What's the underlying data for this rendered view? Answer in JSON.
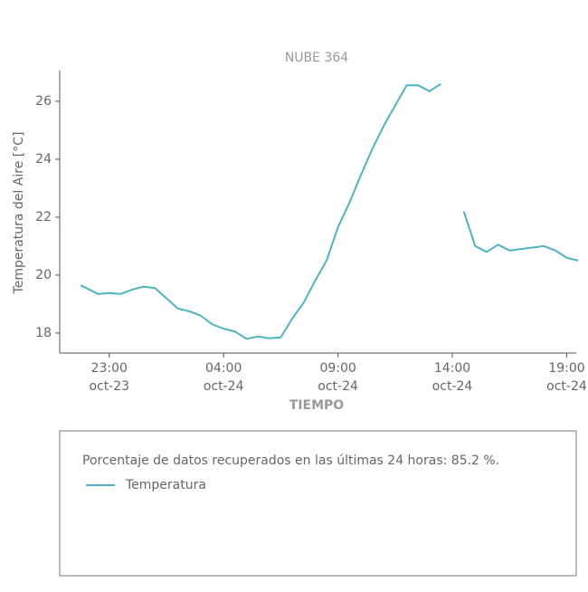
{
  "chart_data": {
    "type": "line",
    "title": "NUBE 364",
    "x_label": "TIEMPO",
    "y_label": "Temperatura del Aire [°C]",
    "x": [
      "oct-23 21:45",
      "oct-23 22:00",
      "oct-23 22:30",
      "oct-23 23:00",
      "oct-23 23:30",
      "oct-24 00:00",
      "oct-24 00:30",
      "oct-24 01:00",
      "oct-24 01:30",
      "oct-24 02:00",
      "oct-24 02:30",
      "oct-24 03:00",
      "oct-24 03:30",
      "oct-24 04:00",
      "oct-24 04:30",
      "oct-24 05:00",
      "oct-24 05:30",
      "oct-24 06:00",
      "oct-24 06:30",
      "oct-24 07:00",
      "oct-24 07:30",
      "oct-24 08:00",
      "oct-24 08:30",
      "oct-24 09:00",
      "oct-24 09:30",
      "oct-24 10:00",
      "oct-24 10:30",
      "oct-24 11:00",
      "oct-24 11:30",
      "oct-24 12:00",
      "oct-24 12:30",
      "oct-24 13:00",
      "oct-24 13:30",
      "oct-24 14:00",
      "oct-24 14:30",
      "oct-24 15:00",
      "oct-24 15:30",
      "oct-24 16:00",
      "oct-24 16:30",
      "oct-24 17:00",
      "oct-24 17:30",
      "oct-24 18:00",
      "oct-24 18:30",
      "oct-24 19:00",
      "oct-24 19:30"
    ],
    "series": [
      {
        "name": "Temperatura",
        "color": "#4fb3bf",
        "values": [
          19.65,
          19.55,
          19.35,
          19.38,
          19.35,
          19.5,
          19.6,
          19.55,
          19.2,
          18.85,
          18.75,
          18.6,
          18.3,
          18.15,
          18.05,
          17.8,
          17.88,
          17.82,
          17.85,
          18.5,
          19.05,
          19.8,
          20.5,
          21.65,
          22.5,
          23.45,
          24.35,
          25.15,
          25.85,
          26.55,
          26.55,
          26.35,
          26.6,
          null,
          22.2,
          21.0,
          20.8,
          21.05,
          20.85,
          20.9,
          20.95,
          21.0,
          20.85,
          20.6,
          20.5
        ]
      }
    ],
    "xlim": [
      "oct-23 20:50",
      "oct-24 19:25"
    ],
    "xticks": [
      {
        "value": "oct-23 23:00",
        "label": [
          "23:00",
          "oct-23"
        ]
      },
      {
        "value": "oct-24 04:00",
        "label": [
          "04:00",
          "oct-24"
        ]
      },
      {
        "value": "oct-24 09:00",
        "label": [
          "09:00",
          "oct-24"
        ]
      },
      {
        "value": "oct-24 14:00",
        "label": [
          "14:00",
          "oct-24"
        ]
      },
      {
        "value": "oct-24 19:00",
        "label": [
          "19:00",
          "oct-24"
        ]
      }
    ],
    "ylim": [
      17.31,
      27.06
    ],
    "yticks": [
      18,
      20,
      22,
      24,
      26
    ],
    "grid": false,
    "note": "Porcentaje de datos recuperados en las últimas 24 horas: 85.2 %."
  }
}
